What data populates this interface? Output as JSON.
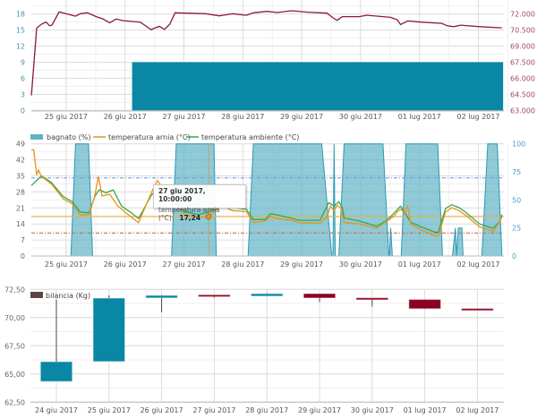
{
  "colors": {
    "teal": "#0a87a5",
    "teal_area": "#5fb3c4",
    "red_line": "#8b1a33",
    "orange": "#e8941a",
    "green": "#3aa64a",
    "candle_up": "#0a87a5",
    "candle_down": "#8b0021",
    "wick": "#5a4545",
    "ref_blue": "#6a8fd8",
    "ref_red": "#e0604a",
    "ref_orange": "#f0b040"
  },
  "date_labels": [
    "25 giu 2017",
    "26 giu 2017",
    "27 giu 2017",
    "28 giu 2017",
    "29 giu 2017",
    "30 giu 2017",
    "01 lug 2017",
    "02 lug 2017"
  ],
  "chart_data": [
    {
      "type": "bar+line",
      "x_unit": "days since 24 giu 2017 00:00",
      "left_axis": {
        "ticks": [
          "0",
          "3",
          "6",
          "9",
          "12",
          "15",
          "18"
        ],
        "ylim": [
          0,
          21
        ]
      },
      "right_axis": {
        "ticks": [
          "63.000",
          "64.500",
          "66.000",
          "67.500",
          "69.000",
          "70.500",
          "72.000"
        ],
        "ylim": [
          63000,
          72000
        ]
      },
      "bar": {
        "from": 2.12,
        "to": 8.42,
        "value": 9
      },
      "line": [
        [
          0.41,
          64400
        ],
        [
          0.5,
          70680
        ],
        [
          0.58,
          71050
        ],
        [
          0.66,
          71240
        ],
        [
          0.72,
          70900
        ],
        [
          0.76,
          70960
        ],
        [
          0.88,
          72200
        ],
        [
          1.04,
          71970
        ],
        [
          1.16,
          71800
        ],
        [
          1.24,
          72030
        ],
        [
          1.36,
          72110
        ],
        [
          1.51,
          71750
        ],
        [
          1.62,
          71550
        ],
        [
          1.74,
          71180
        ],
        [
          1.85,
          71530
        ],
        [
          1.97,
          71380
        ],
        [
          2.26,
          71240
        ],
        [
          2.44,
          70540
        ],
        [
          2.58,
          70850
        ],
        [
          2.67,
          70570
        ],
        [
          2.76,
          71050
        ],
        [
          2.85,
          72110
        ],
        [
          3.37,
          72030
        ],
        [
          3.6,
          71830
        ],
        [
          3.83,
          72030
        ],
        [
          4.06,
          71880
        ],
        [
          4.18,
          72110
        ],
        [
          4.41,
          72250
        ],
        [
          4.59,
          72140
        ],
        [
          4.82,
          72310
        ],
        [
          5.11,
          72170
        ],
        [
          5.43,
          72080
        ],
        [
          5.52,
          71690
        ],
        [
          5.6,
          71410
        ],
        [
          5.69,
          71750
        ],
        [
          5.98,
          71750
        ],
        [
          6.1,
          71890
        ],
        [
          6.51,
          71690
        ],
        [
          6.62,
          71470
        ],
        [
          6.68,
          71020
        ],
        [
          6.8,
          71350
        ],
        [
          7.03,
          71240
        ],
        [
          7.38,
          71130
        ],
        [
          7.47,
          70900
        ],
        [
          7.58,
          70820
        ],
        [
          7.7,
          70960
        ],
        [
          8.02,
          70820
        ],
        [
          8.4,
          70710
        ]
      ]
    },
    {
      "type": "line+area",
      "legend": [
        "bagnato (%)",
        "temperatura arnia (°C)",
        "temperatura ambiente (°C)"
      ],
      "left_axis": {
        "ticks": [
          "0",
          "7",
          "14",
          "21",
          "28",
          "35",
          "42",
          "49"
        ],
        "ylim": [
          0,
          49
        ]
      },
      "right_axis": {
        "ticks": [
          "0",
          "25",
          "50",
          "75",
          "100"
        ],
        "ylim": [
          0,
          100
        ]
      },
      "reference_lines": {
        "max": 34.1,
        "min": 10.0,
        "selected": 17.24
      },
      "bagnato": [
        [
          0.41,
          0
        ],
        [
          1.08,
          0
        ],
        [
          1.16,
          100
        ],
        [
          1.38,
          100
        ],
        [
          1.45,
          0
        ],
        [
          2.79,
          0
        ],
        [
          2.87,
          100
        ],
        [
          3.51,
          100
        ],
        [
          3.55,
          0
        ],
        [
          4.09,
          0
        ],
        [
          4.18,
          100
        ],
        [
          5.34,
          100
        ],
        [
          5.51,
          0
        ],
        [
          5.53,
          0
        ],
        [
          5.55,
          100
        ],
        [
          5.57,
          0
        ],
        [
          5.63,
          0
        ],
        [
          5.72,
          100
        ],
        [
          6.38,
          100
        ],
        [
          6.48,
          0
        ],
        [
          6.49,
          0
        ],
        [
          6.51,
          25
        ],
        [
          6.54,
          0
        ],
        [
          6.69,
          0
        ],
        [
          6.77,
          100
        ],
        [
          7.31,
          100
        ],
        [
          7.39,
          0
        ],
        [
          7.56,
          0
        ],
        [
          7.61,
          25
        ],
        [
          7.63,
          0
        ],
        [
          7.66,
          25
        ],
        [
          7.72,
          25
        ],
        [
          7.74,
          0
        ],
        [
          8.06,
          0
        ],
        [
          8.16,
          100
        ],
        [
          8.32,
          100
        ],
        [
          8.4,
          0
        ]
      ],
      "arnia": [
        [
          0.41,
          46.4
        ],
        [
          0.45,
          46.4
        ],
        [
          0.5,
          35.4
        ],
        [
          0.53,
          37.6
        ],
        [
          0.58,
          34.7
        ],
        [
          0.75,
          31.5
        ],
        [
          0.95,
          25.0
        ],
        [
          1.1,
          22.8
        ],
        [
          1.24,
          17.9
        ],
        [
          1.39,
          18.1
        ],
        [
          1.48,
          25.7
        ],
        [
          1.55,
          34.7
        ],
        [
          1.61,
          26.3
        ],
        [
          1.74,
          27.0
        ],
        [
          1.88,
          21.8
        ],
        [
          2.03,
          18.5
        ],
        [
          2.23,
          14.6
        ],
        [
          2.35,
          21.8
        ],
        [
          2.47,
          28.9
        ],
        [
          2.55,
          33.0
        ],
        [
          2.61,
          30.8
        ],
        [
          2.73,
          26.3
        ],
        [
          2.87,
          21.8
        ],
        [
          3.02,
          17.9
        ],
        [
          3.19,
          17.2
        ],
        [
          3.37,
          17.0
        ],
        [
          3.42,
          17.24
        ],
        [
          3.51,
          19.8
        ],
        [
          3.66,
          21.8
        ],
        [
          3.83,
          19.8
        ],
        [
          4.06,
          19.4
        ],
        [
          4.18,
          14.6
        ],
        [
          4.38,
          15.3
        ],
        [
          4.47,
          17.2
        ],
        [
          4.59,
          16.3
        ],
        [
          4.82,
          15.6
        ],
        [
          4.94,
          14.6
        ],
        [
          5.31,
          14.3
        ],
        [
          5.43,
          17.2
        ],
        [
          5.49,
          21.8
        ],
        [
          5.55,
          19.8
        ],
        [
          5.6,
          22.0
        ],
        [
          5.66,
          21.1
        ],
        [
          5.72,
          14.6
        ],
        [
          5.98,
          14.0
        ],
        [
          6.27,
          12.1
        ],
        [
          6.45,
          15.3
        ],
        [
          6.56,
          17.2
        ],
        [
          6.62,
          19.2
        ],
        [
          6.68,
          20.5
        ],
        [
          6.74,
          18.9
        ],
        [
          6.8,
          21.8
        ],
        [
          6.85,
          14.0
        ],
        [
          7.03,
          11.4
        ],
        [
          7.26,
          8.8
        ],
        [
          7.32,
          8.8
        ],
        [
          7.44,
          19.2
        ],
        [
          7.55,
          21.1
        ],
        [
          7.67,
          19.8
        ],
        [
          7.78,
          17.9
        ],
        [
          8.02,
          12.7
        ],
        [
          8.25,
          10.8
        ],
        [
          8.37,
          15.3
        ],
        [
          8.4,
          17.2
        ]
      ],
      "ambiente": [
        [
          0.41,
          30.8
        ],
        [
          0.58,
          35.0
        ],
        [
          0.75,
          32.1
        ],
        [
          0.95,
          26.0
        ],
        [
          1.1,
          23.7
        ],
        [
          1.24,
          19.2
        ],
        [
          1.39,
          18.9
        ],
        [
          1.48,
          25.7
        ],
        [
          1.56,
          28.9
        ],
        [
          1.68,
          27.6
        ],
        [
          1.8,
          28.9
        ],
        [
          1.94,
          21.8
        ],
        [
          2.09,
          19.2
        ],
        [
          2.23,
          16.3
        ],
        [
          2.44,
          26.3
        ],
        [
          2.55,
          29.5
        ],
        [
          2.73,
          27.6
        ],
        [
          2.87,
          22.4
        ],
        [
          3.02,
          19.2
        ],
        [
          3.25,
          18.1
        ],
        [
          3.42,
          19.2
        ],
        [
          3.51,
          20.5
        ],
        [
          3.66,
          22.4
        ],
        [
          3.83,
          21.1
        ],
        [
          4.06,
          20.5
        ],
        [
          4.18,
          15.9
        ],
        [
          4.38,
          15.9
        ],
        [
          4.47,
          18.5
        ],
        [
          4.59,
          17.9
        ],
        [
          4.82,
          16.6
        ],
        [
          4.94,
          15.6
        ],
        [
          5.31,
          15.6
        ],
        [
          5.46,
          23.3
        ],
        [
          5.55,
          21.8
        ],
        [
          5.63,
          23.7
        ],
        [
          5.69,
          21.1
        ],
        [
          5.72,
          16.6
        ],
        [
          5.98,
          15.3
        ],
        [
          6.27,
          13.0
        ],
        [
          6.45,
          15.6
        ],
        [
          6.56,
          18.5
        ],
        [
          6.68,
          21.8
        ],
        [
          6.85,
          14.8
        ],
        [
          7.03,
          12.7
        ],
        [
          7.26,
          10.4
        ],
        [
          7.32,
          10.4
        ],
        [
          7.44,
          20.7
        ],
        [
          7.55,
          22.4
        ],
        [
          7.67,
          21.1
        ],
        [
          7.78,
          19.2
        ],
        [
          8.02,
          14.0
        ],
        [
          8.25,
          12.1
        ],
        [
          8.37,
          15.3
        ],
        [
          8.4,
          18.1
        ]
      ],
      "tooltip": {
        "title": "27 giu 2017, 10:00:00",
        "label": "temperatura arnia (°C):",
        "value": "17,24",
        "x": 3.42
      }
    },
    {
      "type": "candlestick",
      "legend": "bilancia (Kg)",
      "y_ticks": [
        "62,50",
        "65,00",
        "67,50",
        "70,00",
        "72,50"
      ],
      "ylim": [
        62.5,
        72.5
      ],
      "categories": [
        "24 giu 2017",
        "25 giu 2017",
        "26 giu 2017",
        "27 giu 2017",
        "28 giu 2017",
        "29 giu 2017",
        "30 giu 2017",
        "01 lug 2017",
        "02 lug 2017"
      ],
      "ohlc": [
        [
          64.35,
          71.6,
          64.35,
          66.07
        ],
        [
          66.12,
          71.97,
          66.1,
          71.71
        ],
        [
          71.76,
          72.0,
          70.46,
          71.95
        ],
        [
          72.0,
          72.0,
          71.76,
          71.87
        ],
        [
          71.92,
          72.18,
          71.87,
          72.1
        ],
        [
          72.1,
          72.1,
          71.36,
          71.76
        ],
        [
          71.73,
          71.73,
          70.97,
          71.6
        ],
        [
          71.58,
          71.58,
          70.76,
          70.81
        ],
        [
          70.78,
          70.78,
          70.65,
          70.65
        ]
      ]
    }
  ]
}
